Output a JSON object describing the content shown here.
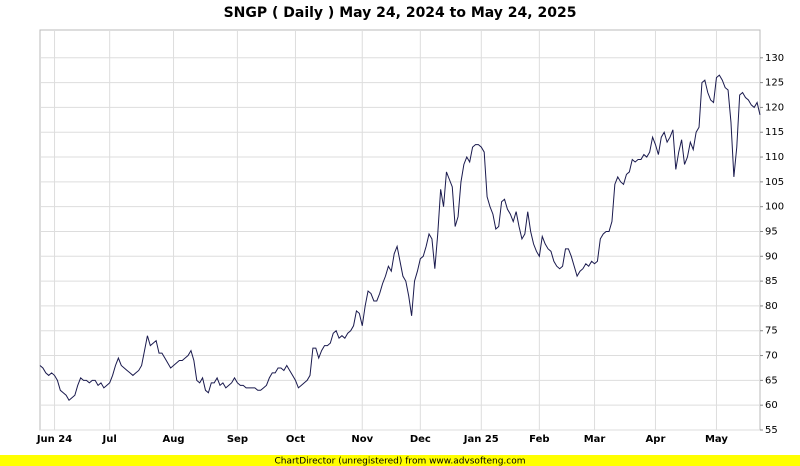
{
  "chart_data": {
    "type": "line",
    "title": "SNGP ( Daily ) May 24, 2024 to May 24, 2025",
    "footer": "ChartDirector (unregistered) from www.advsofteng.com",
    "color": "#1a1a4e",
    "grid": true,
    "ylim": [
      55,
      135.6
    ],
    "yticks": [
      55,
      60,
      65,
      70,
      75,
      80,
      85,
      90,
      95,
      100,
      105,
      110,
      115,
      120,
      125,
      130
    ],
    "categories": [
      null,
      null,
      null,
      null,
      null,
      "Jun 24",
      null,
      null,
      null,
      null,
      null,
      null,
      null,
      null,
      null,
      null,
      null,
      null,
      null,
      null,
      null,
      null,
      null,
      null,
      "Jul",
      null,
      null,
      null,
      null,
      null,
      null,
      null,
      null,
      null,
      null,
      null,
      null,
      null,
      null,
      null,
      null,
      null,
      null,
      null,
      null,
      null,
      "Aug",
      null,
      null,
      null,
      null,
      null,
      null,
      null,
      null,
      null,
      null,
      null,
      null,
      null,
      null,
      null,
      null,
      null,
      null,
      null,
      null,
      null,
      "Sep",
      null,
      null,
      null,
      null,
      null,
      null,
      null,
      null,
      null,
      null,
      null,
      null,
      null,
      null,
      null,
      null,
      null,
      null,
      null,
      "Oct",
      null,
      null,
      null,
      null,
      null,
      null,
      null,
      null,
      null,
      null,
      null,
      null,
      null,
      null,
      null,
      null,
      null,
      null,
      null,
      null,
      null,
      null,
      "Nov",
      null,
      null,
      null,
      null,
      null,
      null,
      null,
      null,
      null,
      null,
      null,
      null,
      null,
      null,
      null,
      null,
      null,
      null,
      null,
      "Dec",
      null,
      null,
      null,
      null,
      null,
      null,
      null,
      null,
      null,
      null,
      null,
      null,
      null,
      null,
      null,
      null,
      null,
      null,
      null,
      null,
      "Jan 25",
      null,
      null,
      null,
      null,
      null,
      null,
      null,
      null,
      null,
      null,
      null,
      null,
      null,
      null,
      null,
      null,
      null,
      null,
      null,
      "Feb",
      null,
      null,
      null,
      null,
      null,
      null,
      null,
      null,
      null,
      null,
      null,
      null,
      null,
      null,
      null,
      null,
      null,
      null,
      "Mar",
      null,
      null,
      null,
      null,
      null,
      null,
      null,
      null,
      null,
      null,
      null,
      null,
      null,
      null,
      null,
      null,
      null,
      null,
      null,
      null,
      "Apr",
      null,
      null,
      null,
      null,
      null,
      null,
      null,
      null,
      null,
      null,
      null,
      null,
      null,
      null,
      null,
      null,
      null,
      null,
      null,
      null,
      "May",
      null,
      null,
      null,
      null,
      null,
      null,
      null,
      null,
      null,
      null,
      null,
      null,
      null,
      null,
      null
    ],
    "values": [
      68,
      67.5,
      66.5,
      66,
      66.5,
      66,
      65,
      63,
      62.5,
      62,
      61,
      61.5,
      62,
      64,
      65.5,
      65,
      65,
      64.5,
      65,
      65,
      64,
      64.5,
      63.5,
      64,
      64.5,
      66,
      68,
      69.5,
      68,
      67.5,
      67,
      66.5,
      66,
      66.5,
      67,
      68,
      71,
      74,
      72,
      72.5,
      73,
      70.5,
      70.5,
      69.5,
      68.5,
      67.5,
      68,
      68.5,
      69,
      69,
      69.5,
      70,
      71,
      69,
      65,
      64.5,
      65.5,
      63,
      62.5,
      64.5,
      64.5,
      65.5,
      64,
      64.5,
      63.5,
      64,
      64.5,
      65.5,
      64.5,
      64,
      64,
      63.5,
      63.5,
      63.5,
      63.5,
      63,
      63,
      63.5,
      64,
      65.5,
      66.5,
      66.5,
      67.5,
      67.5,
      67,
      68,
      67,
      66,
      65,
      63.5,
      64,
      64.5,
      65,
      66,
      71.5,
      71.5,
      69.5,
      71,
      72,
      72,
      72.5,
      74.5,
      75,
      73.5,
      74,
      73.5,
      74.5,
      75,
      76,
      79,
      78.5,
      76,
      80,
      83,
      82.5,
      81,
      81,
      82.5,
      84.5,
      86,
      88,
      87,
      90.5,
      92,
      89,
      86,
      85,
      82,
      78,
      85,
      87,
      89.5,
      90,
      92,
      94.5,
      93.5,
      87.5,
      94.5,
      103.5,
      100,
      107,
      105.5,
      104,
      96,
      98,
      105,
      108.5,
      110,
      109,
      112,
      112.5,
      112.5,
      112,
      111,
      102,
      100,
      98.5,
      95.5,
      96,
      101,
      101.5,
      99.5,
      98.5,
      97,
      99,
      96,
      93.5,
      94.5,
      99,
      95,
      92.5,
      91,
      90,
      94,
      92.5,
      91.5,
      91,
      89,
      88,
      87.5,
      88,
      91.5,
      91.5,
      90,
      88,
      86,
      87,
      87.5,
      88.5,
      88,
      89,
      88.5,
      89,
      93.5,
      94.5,
      95,
      95,
      97,
      104.5,
      106,
      105,
      104.5,
      106.5,
      107,
      109.5,
      109,
      109.5,
      109.5,
      110.5,
      110,
      111,
      114,
      112.5,
      110.5,
      114,
      115,
      113,
      114,
      115.5,
      107.5,
      111,
      113.5,
      108.5,
      110,
      113,
      111.5,
      115,
      116,
      125,
      125.5,
      123,
      121.5,
      121,
      126,
      126.5,
      125.5,
      124,
      123.5,
      117,
      106,
      112,
      122.5,
      123,
      122,
      121.5,
      120.5,
      120,
      121,
      118.5
    ]
  }
}
